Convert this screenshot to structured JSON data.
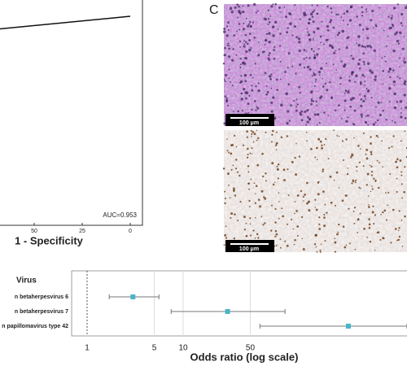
{
  "roc_panel": {
    "chart_data": {
      "type": "line",
      "xlabel": "1 - Specificity",
      "annotation": "AUC=0.953",
      "xlim": [
        100,
        0
      ],
      "xticks": [
        50,
        25,
        0
      ],
      "ylim": [
        0,
        100
      ],
      "x": [
        68,
        0
      ],
      "y": [
        94,
        100
      ],
      "color": "#111111"
    }
  },
  "panel_c": {
    "label": "C",
    "scale_bars": [
      "100 μm",
      "100 μm"
    ]
  },
  "forest_panel": {
    "chart_data": {
      "type": "forest",
      "header": "Virus",
      "categories": [
        "n betaherpesvirus 6",
        "n betaherpesvirus 7",
        "n papillomavirus type 42"
      ],
      "values": [
        3,
        29,
        525
      ],
      "lower": [
        1.7,
        7.5,
        63
      ],
      "upper": [
        5.6,
        115,
        2140
      ],
      "xlabel": "Odds ratio (log scale)",
      "xlim": [
        0.69,
        2140
      ],
      "xticks": [
        1,
        5,
        10,
        50
      ],
      "log_scale": true,
      "grid": true,
      "reference": 1,
      "color": "#4bb5c8"
    }
  }
}
